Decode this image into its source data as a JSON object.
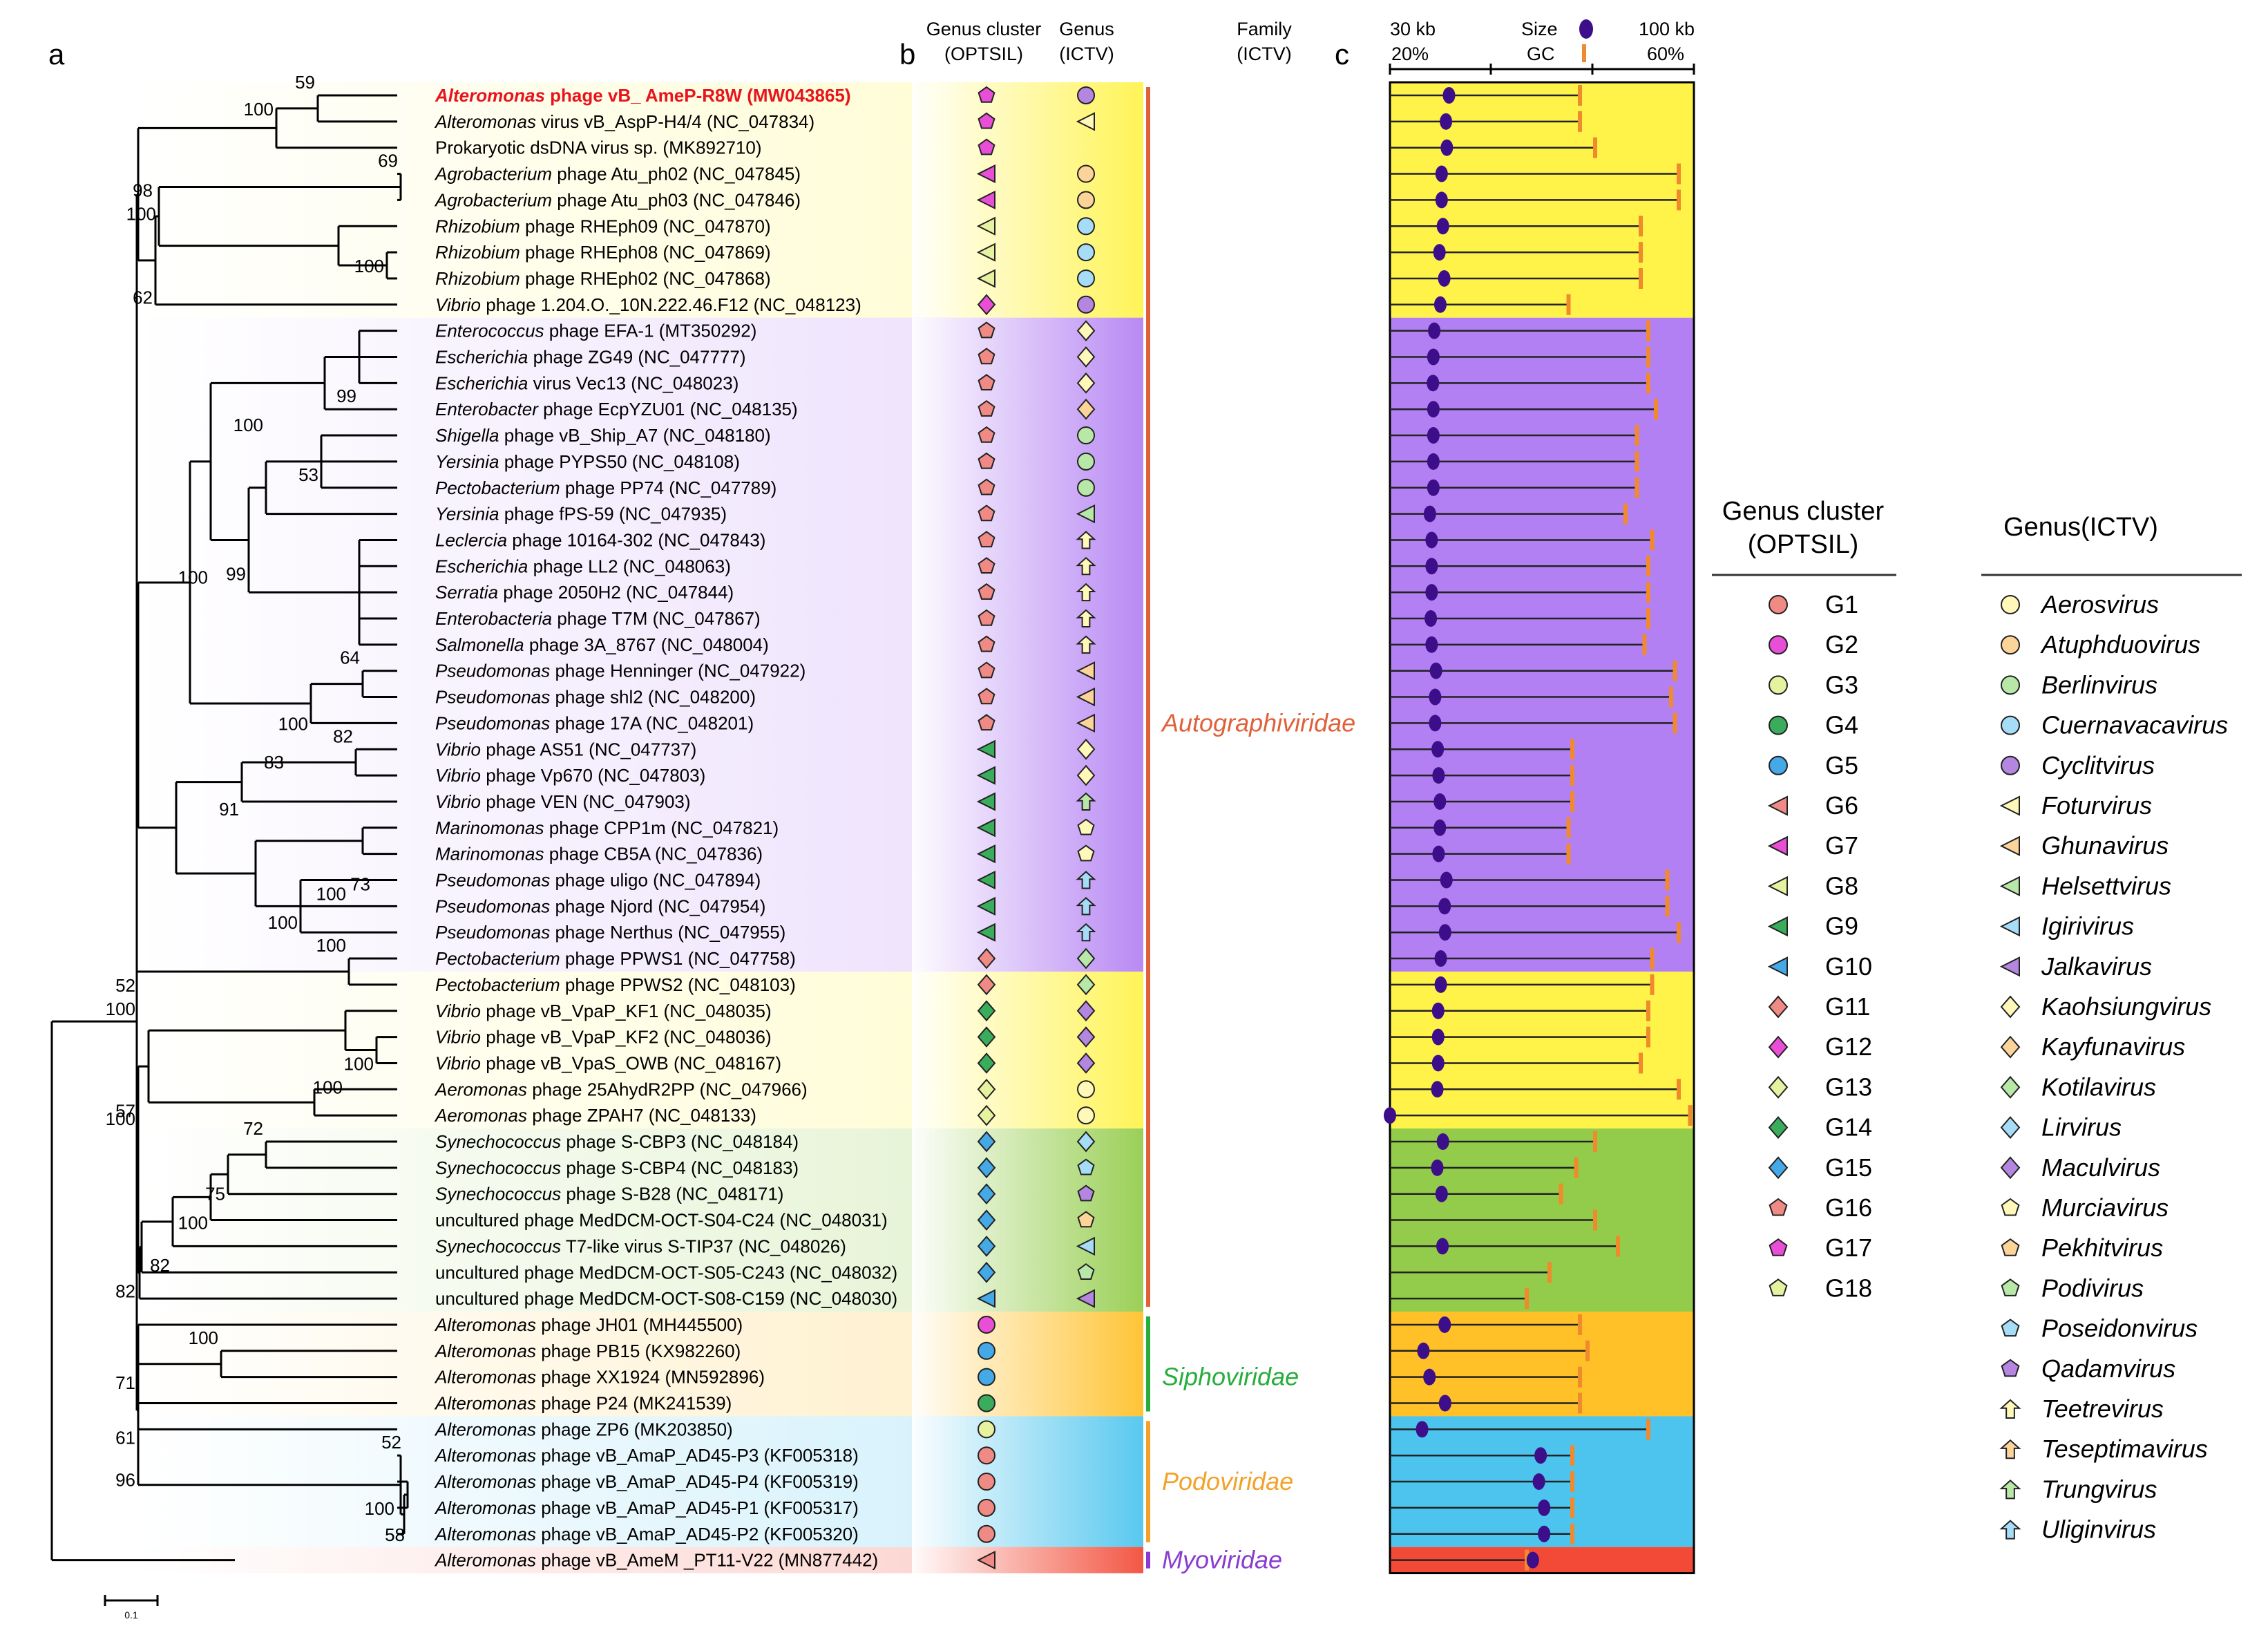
{
  "panels": {
    "a": "a",
    "b": "b",
    "c": "c"
  },
  "headers": {
    "cluster1": "Genus cluster",
    "cluster2": "(OPTSIL)",
    "genus1": "Genus",
    "genus2": "(ICTV)",
    "family1": "Family",
    "family2": "(ICTV)",
    "kb_min": "30 kb",
    "kb_max": "100 kb",
    "gc_min": "20%",
    "gc_max": "60%",
    "size": "Size",
    "gc": "GC"
  },
  "scale_label": "0.1",
  "colors": {
    "G1": "#f08a84",
    "G2": "#e84fd6",
    "G3": "#e6f2a0",
    "G4": "#3aad5c",
    "G5": "#44a9e6",
    "G6": "#f08a84",
    "G7": "#e84fd6",
    "G8": "#e6f2a0",
    "G9": "#3aad5c",
    "G10": "#44a9e6",
    "G11": "#f08a84",
    "G12": "#e84fd6",
    "G13": "#e6f2a0",
    "G14": "#3aad5c",
    "G15": "#44a9e6",
    "G16": "#f08a84",
    "G17": "#e84fd6",
    "G18": "#e6f2a0",
    "Aerosvirus": "#fff8b8",
    "Atuphduovirus": "#fcd49a",
    "Berlinvirus": "#b8e8a8",
    "Cuernavacavirus": "#a6dcf6",
    "Cyclitvirus": "#b486e0",
    "Foturvirus": "#fff8b8",
    "Ghunavirus": "#fcd49a",
    "Helsettvirus": "#b8e8a8",
    "Igirivirus": "#a6dcf6",
    "Jalkavirus": "#b486e0",
    "Kaohsiungvirus": "#fff8b8",
    "Kayfunavirus": "#fcd49a",
    "Kotilavirus": "#b8e8a8",
    "Lirvirus": "#a6dcf6",
    "Maculvirus": "#b486e0",
    "Murciavirus": "#fff8b8",
    "Pekhitvirus": "#fcd49a",
    "Podivirus": "#b8e8a8",
    "Poseidonvirus": "#a6dcf6",
    "Qadamvirus": "#b486e0",
    "Teetrevirus": "#fff8b8",
    "Teseptimavirus": "#fcd49a",
    "Trungvirus": "#b8e8a8",
    "Uliginvirus": "#a6dcf6",
    "none": "#ffffff"
  },
  "legend": {
    "cluster_title1": "Genus cluster",
    "cluster_title2": "(OPTSIL)",
    "genus_title": "Genus(ICTV)",
    "clusters": [
      {
        "label": "G1",
        "shape": "circle"
      },
      {
        "label": "G2",
        "shape": "circle"
      },
      {
        "label": "G3",
        "shape": "circle"
      },
      {
        "label": "G4",
        "shape": "circle"
      },
      {
        "label": "G5",
        "shape": "circle"
      },
      {
        "label": "G6",
        "shape": "triangle"
      },
      {
        "label": "G7",
        "shape": "triangle"
      },
      {
        "label": "G8",
        "shape": "triangle"
      },
      {
        "label": "G9",
        "shape": "triangle"
      },
      {
        "label": "G10",
        "shape": "triangle"
      },
      {
        "label": "G11",
        "shape": "diamond"
      },
      {
        "label": "G12",
        "shape": "diamond"
      },
      {
        "label": "G13",
        "shape": "diamond"
      },
      {
        "label": "G14",
        "shape": "diamond"
      },
      {
        "label": "G15",
        "shape": "diamond"
      },
      {
        "label": "G16",
        "shape": "pentagon"
      },
      {
        "label": "G17",
        "shape": "pentagon"
      },
      {
        "label": "G18",
        "shape": "pentagon"
      }
    ],
    "genera": [
      {
        "label": "Aerosvirus",
        "shape": "circle"
      },
      {
        "label": "Atuphduovirus",
        "shape": "circle"
      },
      {
        "label": "Berlinvirus",
        "shape": "circle"
      },
      {
        "label": "Cuernavacavirus",
        "shape": "circle"
      },
      {
        "label": "Cyclitvirus",
        "shape": "circle"
      },
      {
        "label": "Foturvirus",
        "shape": "triangle"
      },
      {
        "label": "Ghunavirus",
        "shape": "triangle"
      },
      {
        "label": "Helsettvirus",
        "shape": "triangle"
      },
      {
        "label": "Igirivirus",
        "shape": "triangle"
      },
      {
        "label": "Jalkavirus",
        "shape": "triangle"
      },
      {
        "label": "Kaohsiungvirus",
        "shape": "diamond"
      },
      {
        "label": "Kayfunavirus",
        "shape": "diamond"
      },
      {
        "label": "Kotilavirus",
        "shape": "diamond"
      },
      {
        "label": "Lirvirus",
        "shape": "diamond"
      },
      {
        "label": "Maculvirus",
        "shape": "diamond"
      },
      {
        "label": "Murciavirus",
        "shape": "pentagon"
      },
      {
        "label": "Pekhitvirus",
        "shape": "pentagon"
      },
      {
        "label": "Podivirus",
        "shape": "pentagon"
      },
      {
        "label": "Poseidonvirus",
        "shape": "pentagon"
      },
      {
        "label": "Qadamvirus",
        "shape": "pentagon"
      },
      {
        "label": "Teetrevirus",
        "shape": "arrow"
      },
      {
        "label": "Teseptimavirus",
        "shape": "arrow"
      },
      {
        "label": "Trungvirus",
        "shape": "arrow"
      },
      {
        "label": "Uliginvirus",
        "shape": "arrow"
      }
    ]
  },
  "bands": [
    {
      "from": 0,
      "to": 8,
      "color": "#fff34a",
      "name": "yellow-1"
    },
    {
      "from": 9,
      "to": 33,
      "color": "#b380f3",
      "name": "purple"
    },
    {
      "from": 34,
      "to": 39,
      "color": "#fff34a",
      "name": "yellow-2"
    },
    {
      "from": 40,
      "to": 46,
      "color": "#93cc4a",
      "name": "green"
    },
    {
      "from": 47,
      "to": 50,
      "color": "#ffc028",
      "name": "orange"
    },
    {
      "from": 51,
      "to": 55,
      "color": "#4cc4ee",
      "name": "blue"
    },
    {
      "from": 56,
      "to": 56,
      "color": "#f24a36",
      "name": "red"
    }
  ],
  "families": [
    {
      "label": "Autographiviridae",
      "from": 0,
      "to": 46,
      "color": "#e0603a",
      "text_row": 24
    },
    {
      "label": "Siphoviridae",
      "from": 47,
      "to": 50,
      "color": "#27ad3c",
      "text_row": 49
    },
    {
      "label": "Podoviridae",
      "from": 51,
      "to": 55,
      "color": "#f2a228",
      "text_row": 53
    },
    {
      "label": "Myoviridae",
      "from": 56,
      "to": 56,
      "color": "#8a3cd0",
      "text_row": 56
    }
  ],
  "taxa": [
    {
      "genus_it": "Alteromonas",
      "rest": " phage vB_ AmeP-R8W (MW043865)",
      "highlight": true,
      "cluster": "G17",
      "genus": "Cyclitvirus",
      "size_kb": 43.6,
      "gc": 45
    },
    {
      "genus_it": "Alteromonas",
      "rest": " virus vB_AspP-H4/4 (NC_047834)",
      "cluster": "G17",
      "genus": "Foturvirus",
      "size_kb": 42.9,
      "gc": 45
    },
    {
      "genus_it": "",
      "rest": "Prokaryotic dsDNA virus sp. (MK892710)",
      "cluster": "G17",
      "genus": "none",
      "size_kb": 43.1,
      "gc": 47
    },
    {
      "genus_it": "Agrobacterium",
      "rest": " phage Atu_ph02 (NC_047845)",
      "cluster": "G7",
      "genus": "Atuphduovirus",
      "size_kb": 41.9,
      "gc": 58
    },
    {
      "genus_it": "Agrobacterium",
      "rest": " phage Atu_ph03 (NC_047846)",
      "cluster": "G7",
      "genus": "Atuphduovirus",
      "size_kb": 41.9,
      "gc": 58
    },
    {
      "genus_it": "Rhizobium",
      "rest": " phage RHEph09 (NC_047870)",
      "cluster": "G8",
      "genus": "Cuernavacavirus",
      "size_kb": 42.2,
      "gc": 53
    },
    {
      "genus_it": "Rhizobium",
      "rest": " phage RHEph08 (NC_047869)",
      "cluster": "G8",
      "genus": "Cuernavacavirus",
      "size_kb": 41.4,
      "gc": 53
    },
    {
      "genus_it": "Rhizobium",
      "rest": " phage RHEph02 (NC_047868)",
      "cluster": "G8",
      "genus": "Cuernavacavirus",
      "size_kb": 42.5,
      "gc": 53
    },
    {
      "genus_it": "Vibrio",
      "rest": " phage 1.204.O._10N.222.46.F12 (NC_048123)",
      "cluster": "G12",
      "genus": "Cyclitvirus",
      "size_kb": 41.6,
      "gc": 43.5
    },
    {
      "genus_it": "Enterococcus",
      "rest": " phage EFA-1 (MT350292)",
      "cluster": "G16",
      "genus": "Kaohsiungvirus",
      "size_kb": 40.2,
      "gc": 54
    },
    {
      "genus_it": "Escherichia",
      "rest": " phage ZG49 (NC_047777)",
      "cluster": "G16",
      "genus": "Kaohsiungvirus",
      "size_kb": 40.0,
      "gc": 54
    },
    {
      "genus_it": "Escherichia",
      "rest": " virus Vec13 (NC_048023)",
      "cluster": "G16",
      "genus": "Kaohsiungvirus",
      "size_kb": 39.9,
      "gc": 54
    },
    {
      "genus_it": "Enterobacter",
      "rest": " phage EcpYZU01 (NC_048135)",
      "cluster": "G16",
      "genus": "Kayfunavirus",
      "size_kb": 40.0,
      "gc": 55
    },
    {
      "genus_it": "Shigella",
      "rest": " phage vB_Ship_A7 (NC_048180)",
      "cluster": "G16",
      "genus": "Berlinvirus",
      "size_kb": 40.0,
      "gc": 52.5
    },
    {
      "genus_it": "Yersinia",
      "rest": " phage PYPS50 (NC_048108)",
      "cluster": "G16",
      "genus": "Berlinvirus",
      "size_kb": 40.0,
      "gc": 52.5
    },
    {
      "genus_it": "Pectobacterium",
      "rest": " phage PP74 (NC_047789)",
      "cluster": "G16",
      "genus": "Berlinvirus",
      "size_kb": 40.0,
      "gc": 52.5
    },
    {
      "genus_it": "Yersinia",
      "rest": " phage fPS-59 (NC_047935)",
      "cluster": "G16",
      "genus": "Helsettvirus",
      "size_kb": 39.2,
      "gc": 51
    },
    {
      "genus_it": "Leclercia",
      "rest": " phage 10164-302 (NC_047843)",
      "cluster": "G16",
      "genus": "Teetrevirus",
      "size_kb": 39.6,
      "gc": 54.5
    },
    {
      "genus_it": "Escherichia",
      "rest": " phage LL2 (NC_048063)",
      "cluster": "G16",
      "genus": "Teetrevirus",
      "size_kb": 39.6,
      "gc": 54
    },
    {
      "genus_it": "Serratia",
      "rest": " phage 2050H2 (NC_047844)",
      "cluster": "G16",
      "genus": "Teetrevirus",
      "size_kb": 39.6,
      "gc": 54
    },
    {
      "genus_it": "Enterobacteria",
      "rest": " phage T7M (NC_047867)",
      "cluster": "G16",
      "genus": "Teetrevirus",
      "size_kb": 39.4,
      "gc": 54
    },
    {
      "genus_it": "Salmonella",
      "rest": " phage 3A_8767 (NC_048004)",
      "cluster": "G16",
      "genus": "Teetrevirus",
      "size_kb": 39.6,
      "gc": 53.5
    },
    {
      "genus_it": "Pseudomonas",
      "rest": " phage Henninger (NC_047922)",
      "cluster": "G16",
      "genus": "Ghunavirus",
      "size_kb": 40.6,
      "gc": 57.5
    },
    {
      "genus_it": "Pseudomonas",
      "rest": " phage shl2 (NC_048200)",
      "cluster": "G16",
      "genus": "Ghunavirus",
      "size_kb": 40.4,
      "gc": 57
    },
    {
      "genus_it": "Pseudomonas",
      "rest": " phage 17A (NC_048201)",
      "cluster": "G16",
      "genus": "Ghunavirus",
      "size_kb": 40.4,
      "gc": 57.5
    },
    {
      "genus_it": "Vibrio",
      "rest": " phage AS51 (NC_047737)",
      "cluster": "G9",
      "genus": "Kaohsiungvirus",
      "size_kb": 41.0,
      "gc": 44
    },
    {
      "genus_it": "Vibrio",
      "rest": " phage Vp670 (NC_047803)",
      "cluster": "G9",
      "genus": "Kaohsiungvirus",
      "size_kb": 41.2,
      "gc": 44
    },
    {
      "genus_it": "Vibrio",
      "rest": " phage VEN (NC_047903)",
      "cluster": "G9",
      "genus": "Trungvirus",
      "size_kb": 41.5,
      "gc": 44
    },
    {
      "genus_it": "Marinomonas",
      "rest": " phage CPP1m (NC_047821)",
      "cluster": "G9",
      "genus": "Murciavirus",
      "size_kb": 41.5,
      "gc": 43.5
    },
    {
      "genus_it": "Marinomonas",
      "rest": " phage CB5A (NC_047836)",
      "cluster": "G9",
      "genus": "Murciavirus",
      "size_kb": 41.2,
      "gc": 43.5
    },
    {
      "genus_it": "Pseudomonas",
      "rest": " phage uligo (NC_047894)",
      "cluster": "G9",
      "genus": "Uliginvirus",
      "size_kb": 43.0,
      "gc": 56.5
    },
    {
      "genus_it": "Pseudomonas",
      "rest": " phage Njord (NC_047954)",
      "cluster": "G9",
      "genus": "Uliginvirus",
      "size_kb": 42.6,
      "gc": 56.5
    },
    {
      "genus_it": "Pseudomonas",
      "rest": " phage Nerthus (NC_047955)",
      "cluster": "G9",
      "genus": "Uliginvirus",
      "size_kb": 42.7,
      "gc": 58
    },
    {
      "genus_it": "Pectobacterium",
      "rest": " phage PPWS1 (NC_047758)",
      "cluster": "G11",
      "genus": "Kotilavirus",
      "size_kb": 41.7,
      "gc": 54.5
    },
    {
      "genus_it": "Pectobacterium",
      "rest": " phage PPWS2 (NC_048103)",
      "cluster": "G11",
      "genus": "Kotilavirus",
      "size_kb": 41.7,
      "gc": 54.5
    },
    {
      "genus_it": "Vibrio",
      "rest": " phage vB_VpaP_KF1 (NC_048035)",
      "cluster": "G14",
      "genus": "Maculvirus",
      "size_kb": 41.1,
      "gc": 54
    },
    {
      "genus_it": "Vibrio",
      "rest": " phage vB_VpaP_KF2 (NC_048036)",
      "cluster": "G14",
      "genus": "Maculvirus",
      "size_kb": 41.1,
      "gc": 54
    },
    {
      "genus_it": "Vibrio",
      "rest": " phage vB_VpaS_OWB (NC_048167)",
      "cluster": "G14",
      "genus": "Maculvirus",
      "size_kb": 41.1,
      "gc": 53
    },
    {
      "genus_it": "Aeromonas",
      "rest": " phage 25AhydR2PP (NC_047966)",
      "cluster": "G13",
      "genus": "Aerosvirus",
      "size_kb": 40.9,
      "gc": 58
    },
    {
      "genus_it": "Aeromonas",
      "rest": " phage ZPAH7 (NC_048133)",
      "cluster": "G13",
      "genus": "Aerosvirus",
      "size_kb": 30.0,
      "gc": 59.5
    },
    {
      "genus_it": "Synechococcus",
      "rest": " phage S-CBP3 (NC_048184)",
      "cluster": "G15",
      "genus": "Lirvirus",
      "size_kb": 42.2,
      "gc": 47
    },
    {
      "genus_it": "Synechococcus",
      "rest": " phage S-CBP4 (NC_048183)",
      "cluster": "G15",
      "genus": "Poseidonvirus",
      "size_kb": 40.9,
      "gc": 44.5
    },
    {
      "genus_it": "Synechococcus",
      "rest": " phage S-B28 (NC_048171)",
      "cluster": "G15",
      "genus": "Qadamvirus",
      "size_kb": 41.9,
      "gc": 42.5
    },
    {
      "genus_it": "",
      "rest": "uncultured phage MedDCM-OCT-S04-C24 (NC_048031)",
      "cluster": "G15",
      "genus": "Pekhitvirus",
      "size_kb": null,
      "gc": 47
    },
    {
      "genus_it": "Synechococcus",
      "rest": " T7-like virus S-TIP37 (NC_048026)",
      "cluster": "G15",
      "genus": "Igirivirus",
      "size_kb": 42.1,
      "gc": 50
    },
    {
      "genus_it": "",
      "rest": "uncultured phage MedDCM-OCT-S05-C243 (NC_048032)",
      "cluster": "G15",
      "genus": "Podivirus",
      "size_kb": null,
      "gc": 41
    },
    {
      "genus_it": "",
      "rest": "uncultured phage MedDCM-OCT-S08-C159 (NC_048030)",
      "cluster": "G10",
      "genus": "Jalkavirus",
      "size_kb": null,
      "gc": 38
    },
    {
      "genus_it": "Alteromonas",
      "rest": " phage JH01 (MH445500)",
      "cluster": "G2",
      "genus": "none",
      "size_kb": 42.6,
      "gc": 45
    },
    {
      "genus_it": "Alteromonas",
      "rest": " phage PB15 (KX982260)",
      "cluster": "G5",
      "genus": "none",
      "size_kb": 37.7,
      "gc": 46
    },
    {
      "genus_it": "Alteromonas",
      "rest": " phage XX1924 (MN592896)",
      "cluster": "G5",
      "genus": "none",
      "size_kb": 39.1,
      "gc": 45
    },
    {
      "genus_it": "Alteromonas",
      "rest": " phage P24 (MK241539)",
      "cluster": "G4",
      "genus": "none",
      "size_kb": 42.7,
      "gc": 45
    },
    {
      "genus_it": "Alteromonas",
      "rest": " phage ZP6 (MK203850)",
      "cluster": "G3",
      "genus": "none",
      "size_kb": 37.4,
      "gc": 54
    },
    {
      "genus_it": "Alteromonas",
      "rest": " phage vB_AmaP_AD45-P3 (KF005318)",
      "cluster": "G1",
      "genus": "none",
      "size_kb": 64.7,
      "gc": 44
    },
    {
      "genus_it": "Alteromonas",
      "rest": " phage vB_AmaP_AD45-P4 (KF005319)",
      "cluster": "G1",
      "genus": "none",
      "size_kb": 64.3,
      "gc": 44
    },
    {
      "genus_it": "Alteromonas",
      "rest": " phage vB_AmaP_AD45-P1 (KF005317)",
      "cluster": "G1",
      "genus": "none",
      "size_kb": 65.5,
      "gc": 44
    },
    {
      "genus_it": "Alteromonas",
      "rest": " phage vB_AmaP_AD45-P2 (KF005320)",
      "cluster": "G1",
      "genus": "none",
      "size_kb": 65.5,
      "gc": 44
    },
    {
      "genus_it": "Alteromonas",
      "rest": " phage vB_AmeM _PT11-V22 (MN877442)",
      "cluster": "G6",
      "genus": "none",
      "size_kb": 62.9,
      "gc": 38
    }
  ],
  "tree": {
    "bootstraps": [
      {
        "row": 0,
        "value": "59",
        "pos": "above"
      },
      {
        "row": 0.5,
        "value": "100",
        "pos": "left"
      },
      {
        "row": 3,
        "value": "69",
        "pos": "above"
      },
      {
        "row": 6.5,
        "value": "100",
        "pos": "left"
      },
      {
        "row": 3.6,
        "value": "98",
        "pos": "left"
      },
      {
        "row": 4.5,
        "value": "100",
        "pos": "left"
      },
      {
        "row": 7.7,
        "value": "62",
        "pos": "left"
      },
      {
        "row": 12,
        "value": "99",
        "pos": "above"
      },
      {
        "row": 15,
        "value": "53",
        "pos": "above"
      },
      {
        "row": 13.1,
        "value": "100",
        "pos": "above"
      },
      {
        "row": 18.8,
        "value": "99",
        "pos": "above"
      },
      {
        "row": 18.4,
        "value": "100",
        "pos": "left"
      },
      {
        "row": 22,
        "value": "64",
        "pos": "above"
      },
      {
        "row": 24,
        "value": "100",
        "pos": "left"
      },
      {
        "row": 25,
        "value": "82",
        "pos": "above"
      },
      {
        "row": 26,
        "value": "83",
        "pos": "above"
      },
      {
        "row": 27.8,
        "value": "91",
        "pos": "above"
      },
      {
        "row": 29.6,
        "value": "73",
        "pos": "below"
      },
      {
        "row": 30.5,
        "value": "100",
        "pos": "left"
      },
      {
        "row": 31.6,
        "value": "100",
        "pos": "left"
      },
      {
        "row": 33,
        "value": "100",
        "pos": "above"
      },
      {
        "row": 34,
        "value": "52",
        "pos": "left"
      },
      {
        "row": 34.9,
        "value": "100",
        "pos": "left"
      },
      {
        "row": 37,
        "value": "100",
        "pos": "left"
      },
      {
        "row": 37.9,
        "value": "100",
        "pos": "left"
      },
      {
        "row": 38.8,
        "value": "57",
        "pos": "left"
      },
      {
        "row": 39.1,
        "value": "100",
        "pos": "left"
      },
      {
        "row": 40,
        "value": "72",
        "pos": "above"
      },
      {
        "row": 42.5,
        "value": "75",
        "pos": "above"
      },
      {
        "row": 43.6,
        "value": "100",
        "pos": "above"
      },
      {
        "row": 44.7,
        "value": "82",
        "pos": "left"
      },
      {
        "row": 45.7,
        "value": "82",
        "pos": "left"
      },
      {
        "row": 48,
        "value": "100",
        "pos": "above"
      },
      {
        "row": 49.2,
        "value": "71",
        "pos": "left"
      },
      {
        "row": 51.3,
        "value": "61",
        "pos": "left"
      },
      {
        "row": 52,
        "value": "52",
        "pos": "above"
      },
      {
        "row": 54,
        "value": "100",
        "pos": "left"
      },
      {
        "row": 55,
        "value": "58",
        "pos": "left"
      },
      {
        "row": 52.9,
        "value": "96",
        "pos": "left"
      }
    ]
  }
}
